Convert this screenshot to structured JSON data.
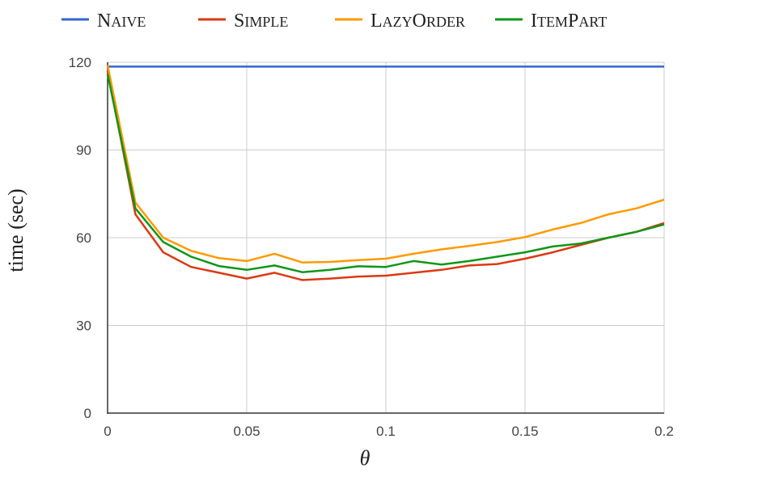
{
  "chart_data": {
    "type": "line",
    "xlabel": "θ",
    "ylabel": "time (sec)",
    "xlim": [
      0,
      0.2
    ],
    "ylim": [
      0,
      120
    ],
    "x_ticks": [
      "0",
      "0.05",
      "0.1",
      "0.15",
      "0.2"
    ],
    "y_ticks": [
      "0",
      "30",
      "60",
      "90",
      "120"
    ],
    "grid": true,
    "legend_position": "top",
    "x": [
      0,
      0.01,
      0.02,
      0.03,
      0.04,
      0.05,
      0.06,
      0.07,
      0.08,
      0.09,
      0.1,
      0.11,
      0.12,
      0.13,
      0.14,
      0.15,
      0.16,
      0.17,
      0.18,
      0.19,
      0.2
    ],
    "series": [
      {
        "name": "Naive",
        "color": "#3366cc",
        "values": [
          118.5,
          118.5,
          118.5,
          118.5,
          118.5,
          118.5,
          118.5,
          118.5,
          118.5,
          118.5,
          118.5,
          118.5,
          118.5,
          118.5,
          118.5,
          118.5,
          118.5,
          118.5,
          118.5,
          118.5,
          118.5
        ]
      },
      {
        "name": "Simple",
        "color": "#dc3912",
        "values": [
          117,
          68,
          55,
          50,
          48,
          46,
          48,
          45.5,
          46,
          46.7,
          47,
          48,
          49,
          50.5,
          51,
          52.8,
          55,
          57.5,
          60,
          62,
          65
        ]
      },
      {
        "name": "LazyOrder",
        "color": "#ff9900",
        "values": [
          119,
          72,
          60,
          55.5,
          53,
          52,
          54.5,
          51.5,
          51.7,
          52.3,
          52.8,
          54.5,
          56,
          57.2,
          58.5,
          60.2,
          62.8,
          65,
          68,
          70,
          73
        ]
      },
      {
        "name": "ItemPart",
        "color": "#109618",
        "values": [
          116,
          70,
          58.5,
          53.5,
          50.3,
          49,
          50.5,
          48.2,
          49,
          50.2,
          50,
          52,
          50.8,
          52,
          53.5,
          55,
          57,
          58,
          60,
          62,
          64.5
        ]
      }
    ]
  }
}
